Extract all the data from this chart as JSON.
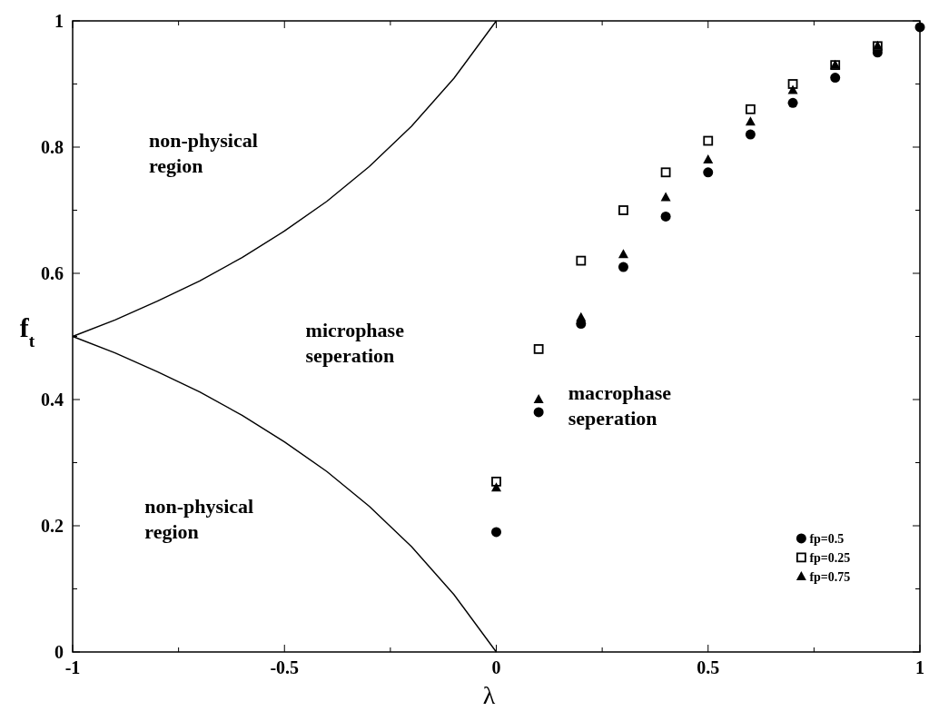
{
  "chart_data": {
    "type": "scatter",
    "xlabel": "λ",
    "ylabel": "f$_{t}$",
    "xlim": [
      -1,
      1
    ],
    "ylim": [
      0,
      1
    ],
    "xticks": [
      -1,
      {
        "value": -0.75,
        "label": null
      },
      -0.5,
      {
        "value": -0.25,
        "label": null
      },
      0,
      {
        "value": 0.25,
        "label": null
      },
      0.5,
      {
        "value": 0.75,
        "label": null
      },
      1
    ],
    "yticks": [
      0,
      {
        "value": 0.1,
        "label": null
      },
      0.2,
      {
        "value": 0.3,
        "label": null
      },
      0.4,
      {
        "value": 0.5,
        "label": null
      },
      0.6,
      {
        "value": 0.7,
        "label": null
      },
      0.8,
      {
        "value": 0.9,
        "label": null
      },
      1
    ],
    "legend": "bottom right",
    "grid": false,
    "annotations": [
      "non-physical\nregion",
      "microphase\nseperation",
      "macrophase\nseperation",
      "non-physical\nregion"
    ],
    "series": [
      {
        "name": "fp=0.5",
        "color": "#000000",
        "marker": "circle",
        "x": [
          0,
          0.1,
          0.2,
          0.3,
          0.4,
          0.5,
          0.6,
          0.7,
          0.8,
          0.9,
          1
        ],
        "values": [
          0.19,
          0.38,
          0.52,
          0.61,
          0.69,
          0.76,
          0.82,
          0.87,
          0.91,
          0.95,
          0.99
        ]
      },
      {
        "name": "fp=0.25",
        "color": "#000000",
        "marker": "square",
        "x": [
          0,
          0.1,
          0.2,
          0.3,
          0.4,
          0.5,
          0.6,
          0.7,
          0.8,
          0.9
        ],
        "values": [
          0.27,
          0.48,
          0.62,
          0.7,
          0.76,
          0.81,
          0.86,
          0.9,
          0.93,
          0.96
        ]
      },
      {
        "name": "fp=0.75",
        "color": "#000000",
        "marker": "triangle",
        "x": [
          0,
          0.1,
          0.2,
          0.3,
          0.4,
          0.5,
          0.6,
          0.7,
          0.8,
          0.9
        ],
        "values": [
          0.26,
          0.4,
          0.53,
          0.63,
          0.72,
          0.78,
          0.84,
          0.89,
          0.93,
          0.96
        ]
      },
      {
        "type": "line",
        "color": "#000000",
        "marker": "none",
        "line_style": "solid",
        "x": [
          -1,
          -0.9,
          -0.8,
          -0.7,
          -0.6,
          -0.5,
          -0.4,
          -0.3,
          -0.2,
          -0.1,
          0
        ],
        "values": [
          0.5,
          0.526,
          0.556,
          0.588,
          0.625,
          0.667,
          0.714,
          0.769,
          0.833,
          0.909,
          1
        ]
      },
      {
        "type": "line",
        "color": "#000000",
        "marker": "none",
        "line_style": "solid",
        "x": [
          -1,
          -0.9,
          -0.8,
          -0.7,
          -0.6,
          -0.5,
          -0.4,
          -0.3,
          -0.2,
          -0.1,
          0
        ],
        "values": [
          0.5,
          0.474,
          0.444,
          0.412,
          0.375,
          0.333,
          0.286,
          0.231,
          0.167,
          0.091,
          0
        ]
      }
    ]
  }
}
